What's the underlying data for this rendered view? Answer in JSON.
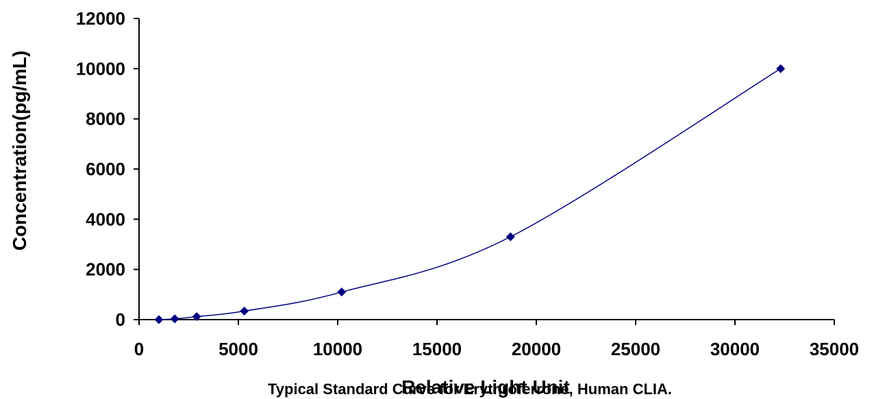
{
  "chart_data": {
    "type": "scatter",
    "xlabel": "Relative Light Unit",
    "ylabel": "Concentration(pg/mL)",
    "caption": "Typical Standard Curve for Erythroferrone, Human CLIA.",
    "xlim": [
      0,
      35000
    ],
    "ylim": [
      0,
      12000
    ],
    "xticks": [
      0,
      5000,
      10000,
      15000,
      20000,
      25000,
      30000,
      35000
    ],
    "yticks": [
      0,
      2000,
      4000,
      6000,
      8000,
      10000,
      12000
    ],
    "grid": false,
    "legend": "none",
    "series": [
      {
        "x": [
          1000,
          1800,
          2900,
          5300,
          10200,
          18700,
          32300
        ],
        "y": [
          0,
          30,
          120,
          340,
          1100,
          3300,
          10000
        ],
        "marker": "diamond",
        "fit": "smooth-curve"
      }
    ],
    "colors": {
      "marker": "#000080",
      "line": "#000080",
      "axis": "#000000"
    }
  }
}
